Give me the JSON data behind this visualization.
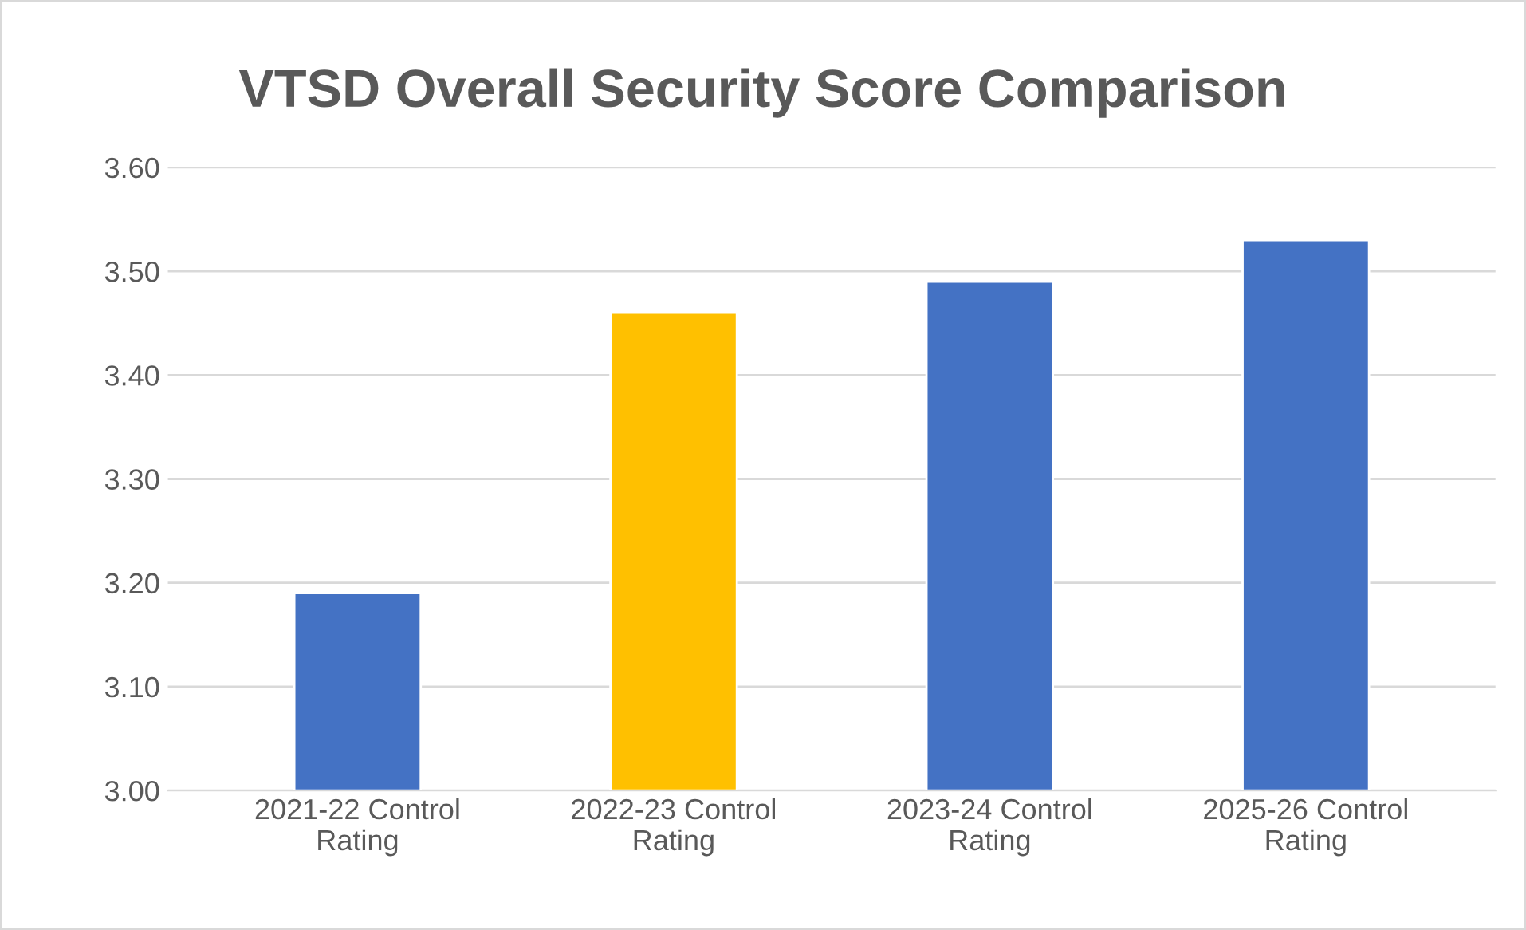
{
  "chart_data": {
    "type": "bar",
    "title": "VTSD Overall Security Score Comparison",
    "categories": [
      "2021-22 Control Rating",
      "2022-23 Control Rating",
      "2023-24 Control Rating",
      "2025-26 Control Rating"
    ],
    "values": [
      3.19,
      3.46,
      3.49,
      3.53
    ],
    "colors": [
      "#4472c4",
      "#ffc000",
      "#4472c4",
      "#4472c4"
    ],
    "ylim": [
      3.0,
      3.6
    ],
    "yticks": [
      {
        "value": 3.0,
        "label": "3.00"
      },
      {
        "value": 3.1,
        "label": "3.10"
      },
      {
        "value": 3.2,
        "label": "3.20"
      },
      {
        "value": 3.3,
        "label": "3.30"
      },
      {
        "value": 3.4,
        "label": "3.40"
      },
      {
        "value": 3.5,
        "label": "3.50"
      },
      {
        "value": 3.6,
        "label": "3.60"
      }
    ],
    "grid": "y"
  }
}
